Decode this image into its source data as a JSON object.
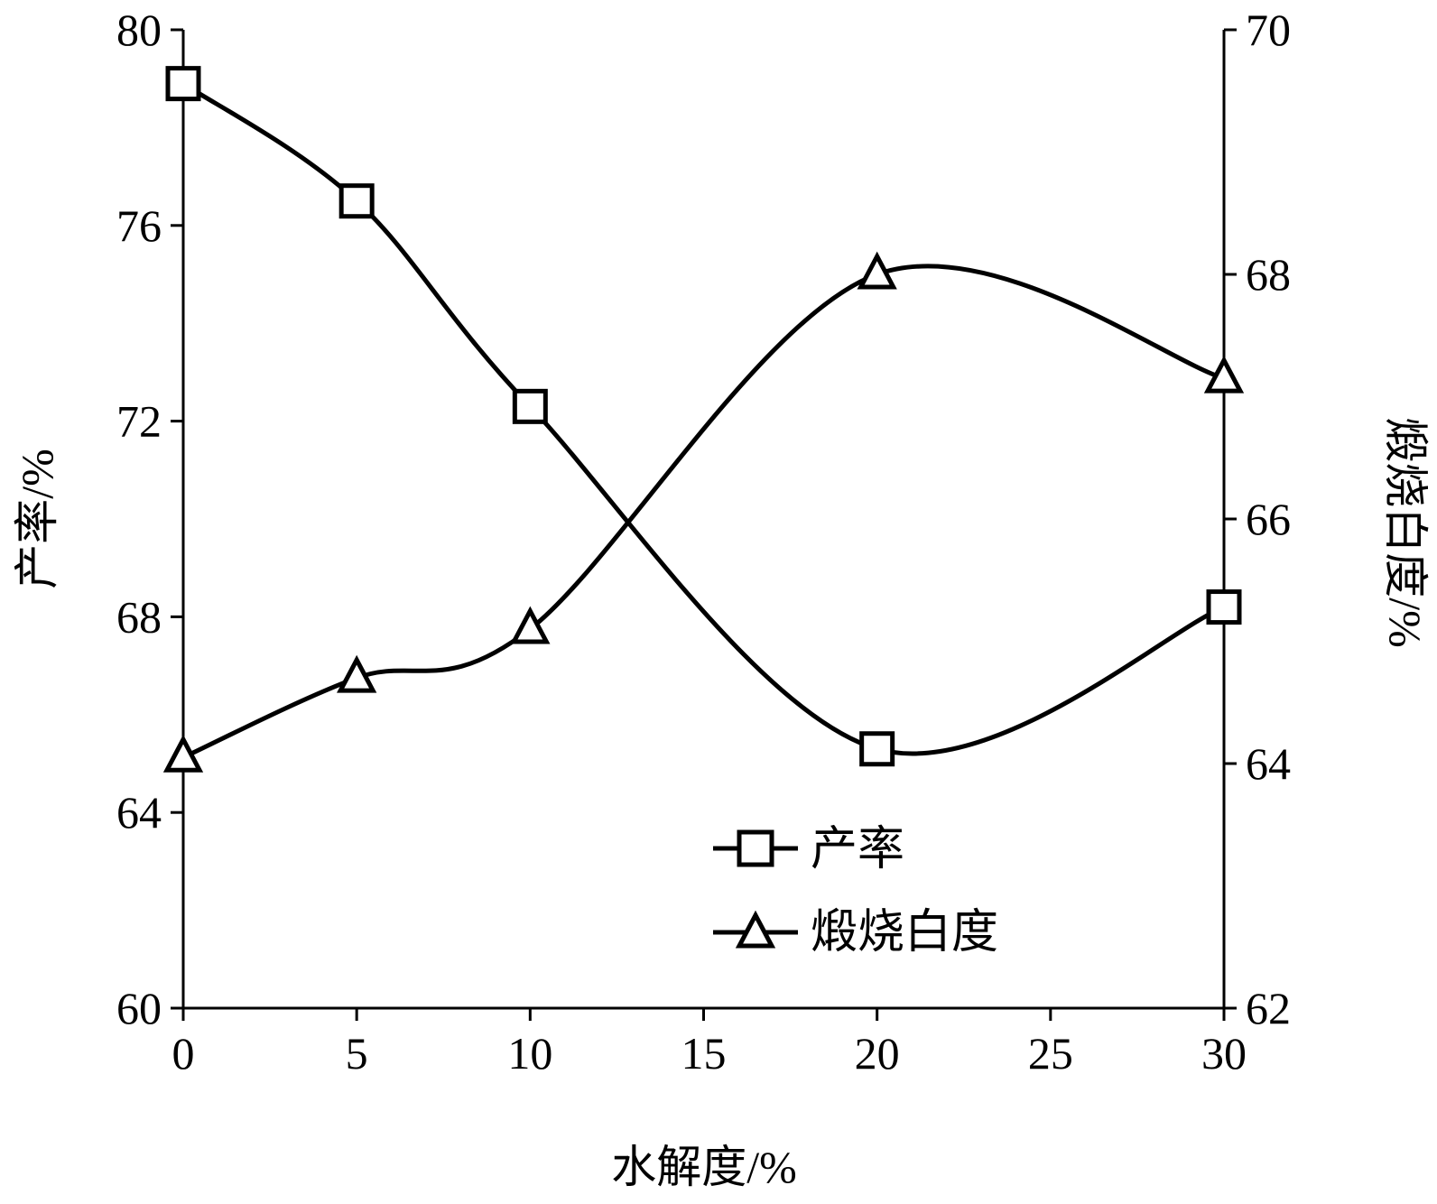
{
  "chart_data": {
    "type": "line",
    "x": [
      0,
      5,
      10,
      20,
      30
    ],
    "xlabel": "水解度/%",
    "ylabel_left": "产率/%",
    "ylabel_right": "煅烧白度/%",
    "xlim": [
      0,
      30
    ],
    "ylim_left": [
      60,
      80
    ],
    "ylim_right": [
      62,
      70
    ],
    "xticks": [
      "0",
      "5",
      "10",
      "15",
      "20",
      "25",
      "30"
    ],
    "yticks_left": [
      "60",
      "64",
      "68",
      "72",
      "76",
      "80"
    ],
    "yticks_right": [
      "62",
      "64",
      "66",
      "68",
      "70"
    ],
    "grid": false,
    "legend_position": "lower-center",
    "series": [
      {
        "name": "产率",
        "axis": "left",
        "marker": "square",
        "values": [
          78.9,
          76.5,
          72.3,
          65.3,
          68.2
        ]
      },
      {
        "name": "煅烧白度",
        "axis": "right",
        "marker": "triangle",
        "values": [
          64.05,
          64.7,
          65.1,
          68.0,
          67.15
        ]
      }
    ],
    "line_color": "#000000"
  }
}
